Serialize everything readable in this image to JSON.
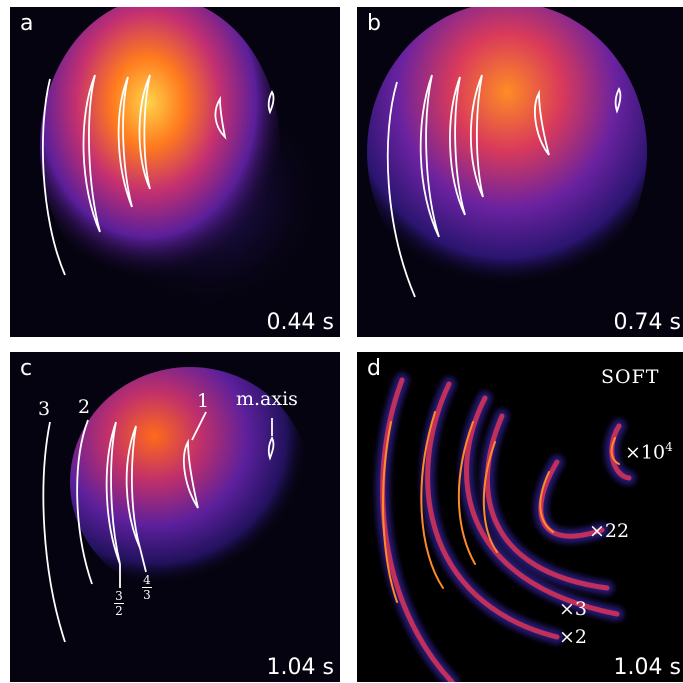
{
  "panels": {
    "a": {
      "label": "a",
      "time": "0.44 s"
    },
    "b": {
      "label": "b",
      "time": "0.74 s"
    },
    "c": {
      "label": "c",
      "time": "1.04 s"
    },
    "d": {
      "label": "d",
      "time": "1.04 s"
    }
  },
  "panel_c_annotations": {
    "surface_3": "3",
    "surface_2": "2",
    "surface_1": "1",
    "magnetic_axis": "m.axis",
    "frac_3_2": {
      "num": "3",
      "den": "2"
    },
    "frac_4_3": {
      "num": "4",
      "den": "3"
    }
  },
  "panel_d_annotations": {
    "method": "SOFT",
    "scale_1e4": "×10",
    "scale_1e4_exp": "4",
    "scale_22": "×22",
    "scale_3": "×3",
    "scale_2": "×2"
  },
  "colors": {
    "background": "#05030f",
    "glow_hot": "#ffe04a",
    "glow_mid": "#ff6a1a",
    "glow_cool": "#7a1fa0",
    "glow_dim": "#2a1570",
    "contour": "#ffffff"
  }
}
